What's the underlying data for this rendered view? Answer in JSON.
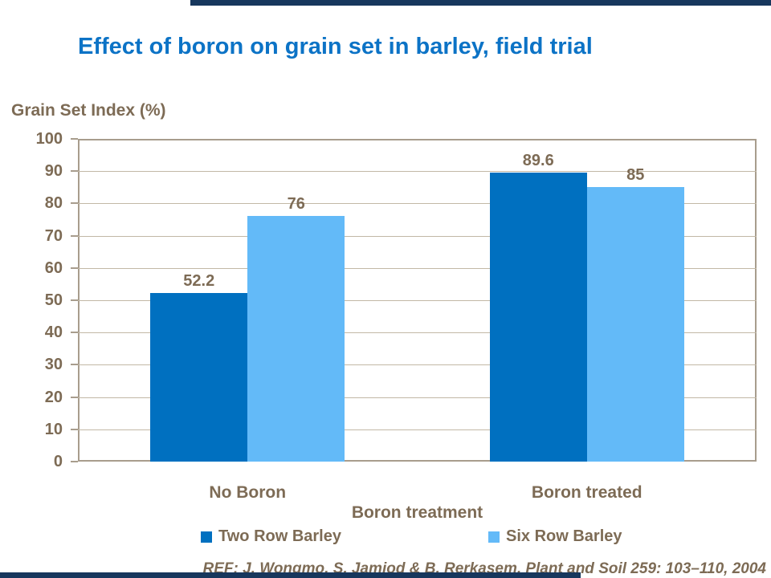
{
  "slide": {
    "title": "Effect of boron on grain set in barley, field trial",
    "reference": "REF: J. Wongmo, S. Jamjod & B. Rerkasem. Plant and Soil 259: 103–110, 2004",
    "accent_bar_color": "#17375D"
  },
  "chart_data": {
    "type": "bar",
    "title": "Effect of boron on grain set in barley, field trial",
    "ylabel": "Grain Set Index (%)",
    "xlabel": "Boron treatment",
    "categories": [
      "No Boron",
      "Boron treated"
    ],
    "series": [
      {
        "name": "Two Row Barley",
        "color": "#0070C0",
        "values": [
          52.2,
          89.6
        ]
      },
      {
        "name": "Six Row Barley",
        "color": "#63BAF8",
        "values": [
          76,
          85
        ]
      }
    ],
    "value_labels": [
      [
        "52.2",
        "89.6"
      ],
      [
        "76",
        "85"
      ]
    ],
    "ylim": [
      0,
      100
    ],
    "ytick_step": 10,
    "grid": true,
    "legend_position": "bottom",
    "colors": {
      "text": "#7D6B55",
      "title": "#0C73C6",
      "gridline": "#C2B8A6",
      "axis_border": "#A89D8D"
    }
  }
}
